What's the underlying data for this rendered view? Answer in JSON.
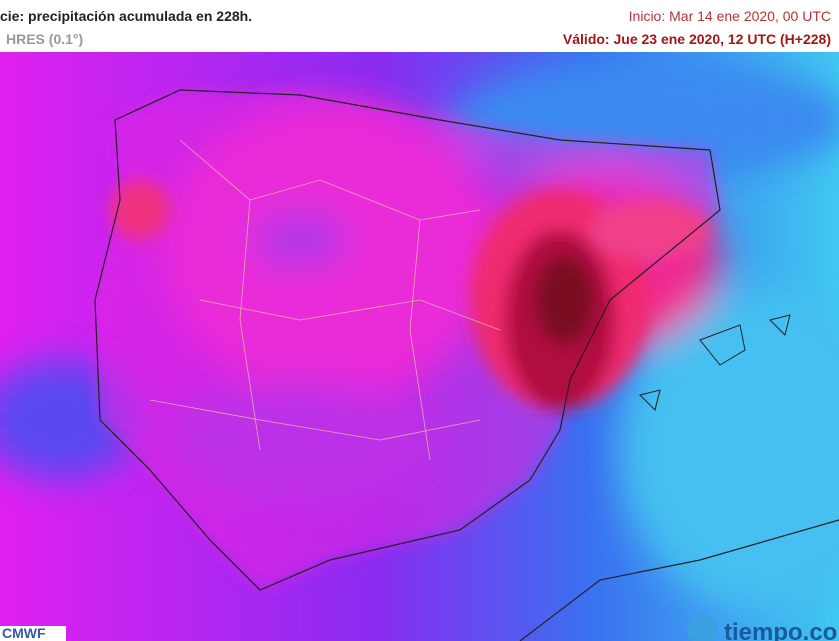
{
  "header": {
    "title": "cie: precipitación acumulada en 228h.",
    "subtitle": "HRES (0.1°)",
    "start": "Inicio: Mar 14 ene 2020, 00 UTC",
    "valid": "Válido: Jue 23 ene 2020, 12 UTC (H+228)"
  },
  "footer": {
    "source": "CMWF",
    "brand": "tiempo.co"
  }
}
